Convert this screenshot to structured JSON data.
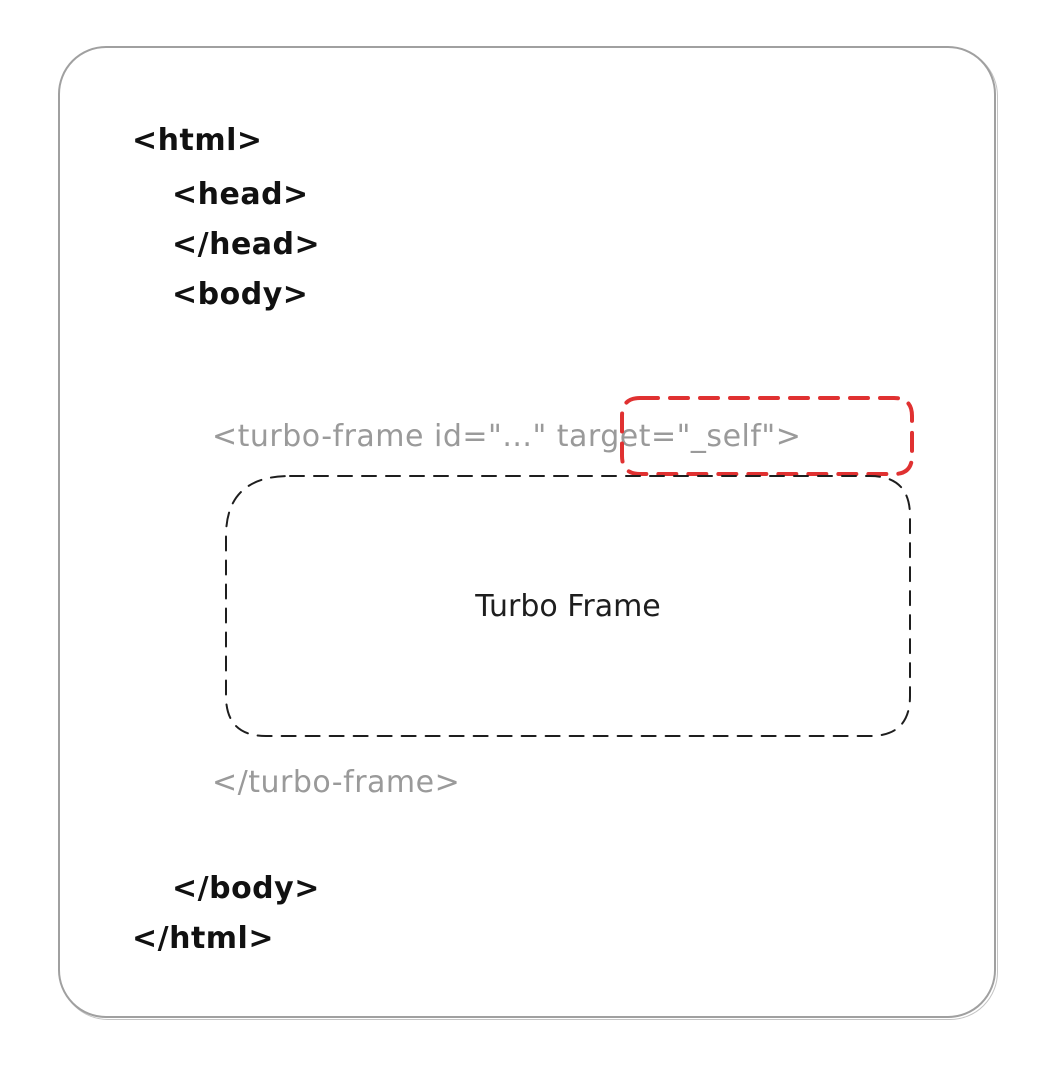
{
  "code_lines": {
    "html_open": "<html>",
    "head_open": "<head>",
    "head_close": "</head>",
    "body_open": "<body>",
    "turbo_frame_open_prefix": "<turbo-frame id=\"...\" ",
    "turbo_frame_target": "target=\"_self\"",
    "turbo_frame_open_suffix": ">",
    "turbo_frame_close": "</turbo-frame>",
    "body_close": "</body>",
    "html_close": "</html>"
  },
  "frame_box": {
    "label": "Turbo Frame"
  },
  "colors": {
    "code_text": "#111111",
    "tag_gray": "#9a9a9a",
    "highlight_red": "#e03131",
    "frame_border": "#1e1e1e",
    "card_border": "#a0a0a0"
  }
}
